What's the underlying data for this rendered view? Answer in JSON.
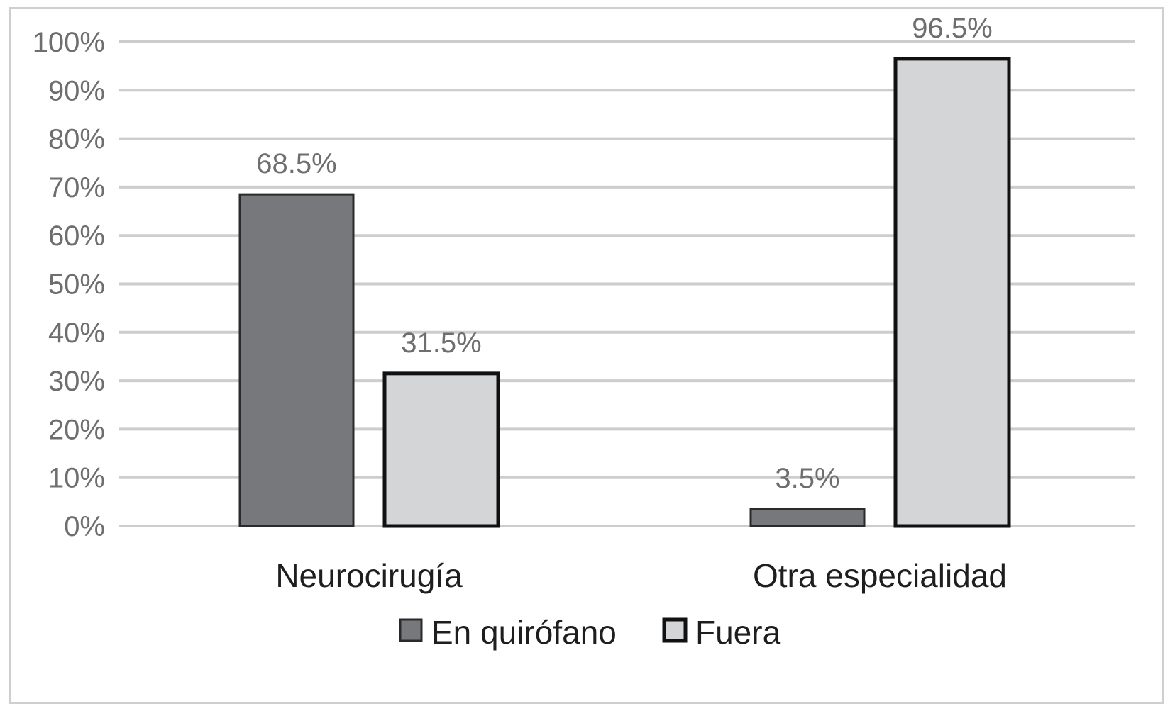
{
  "chart_data": {
    "type": "bar",
    "categories": [
      "Neurocirugía",
      "Otra especialidad"
    ],
    "series": [
      {
        "name": "En quirófano",
        "values": [
          68.5,
          3.5
        ],
        "data_labels": [
          "68.5%",
          "3.5%"
        ],
        "fill": "#77787b",
        "stroke": "#2a2a2a"
      },
      {
        "name": "Fuera",
        "values": [
          31.5,
          96.5
        ],
        "data_labels": [
          "31.5%",
          "96.5%"
        ],
        "fill": "#d4d5d7",
        "stroke": "#111111"
      }
    ],
    "y_ticks": [
      "0%",
      "10%",
      "20%",
      "30%",
      "40%",
      "50%",
      "60%",
      "70%",
      "80%",
      "90%",
      "100%"
    ],
    "ylim": [
      0,
      100
    ],
    "grid": true,
    "legend_position": "bottom",
    "title": "",
    "xlabel": "",
    "ylabel": ""
  }
}
